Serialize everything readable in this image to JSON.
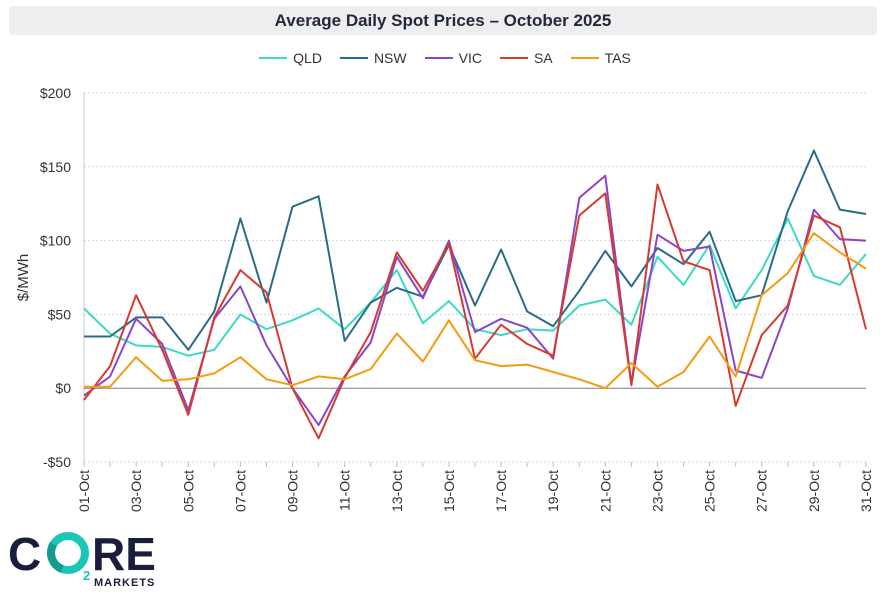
{
  "header": {
    "title": "Average Daily Spot Prices – October 2025"
  },
  "logo": {
    "text": "CO2RE",
    "subtitle": "MARKETS"
  },
  "chart_data": {
    "type": "line",
    "title": "Average Daily Spot Prices – October 2025",
    "ylabel": "$/MWh",
    "xlabel": "",
    "ylim": [
      -50,
      200
    ],
    "ytick_values": [
      -50,
      0,
      50,
      100,
      150,
      200
    ],
    "ytick_labels": [
      "-$50",
      "$0",
      "$50",
      "$100",
      "$150",
      "$200"
    ],
    "categories": [
      "01-Oct",
      "02-Oct",
      "03-Oct",
      "04-Oct",
      "05-Oct",
      "06-Oct",
      "07-Oct",
      "08-Oct",
      "09-Oct",
      "10-Oct",
      "11-Oct",
      "12-Oct",
      "13-Oct",
      "14-Oct",
      "15-Oct",
      "16-Oct",
      "17-Oct",
      "18-Oct",
      "19-Oct",
      "20-Oct",
      "21-Oct",
      "22-Oct",
      "23-Oct",
      "24-Oct",
      "25-Oct",
      "26-Oct",
      "27-Oct",
      "28-Oct",
      "29-Oct",
      "30-Oct",
      "31-Oct"
    ],
    "xtick_labels": [
      "01-Oct",
      "03-Oct",
      "05-Oct",
      "07-Oct",
      "09-Oct",
      "11-Oct",
      "13-Oct",
      "15-Oct",
      "17-Oct",
      "19-Oct",
      "21-Oct",
      "23-Oct",
      "25-Oct",
      "27-Oct",
      "29-Oct",
      "31-Oct"
    ],
    "legend_position": "top-center",
    "series": [
      {
        "name": "QLD",
        "color": "#3dd9c5",
        "values": [
          54,
          37,
          29,
          28,
          22,
          26,
          50,
          40,
          46,
          54,
          40,
          58,
          80,
          44,
          59,
          40,
          36,
          40,
          39,
          56,
          60,
          43,
          89,
          70,
          97,
          54,
          80,
          115,
          76,
          70,
          91
        ]
      },
      {
        "name": "NSW",
        "color": "#2a6b8a",
        "values": [
          35,
          35,
          48,
          48,
          26,
          52,
          115,
          58,
          123,
          130,
          32,
          58,
          68,
          62,
          97,
          56,
          94,
          52,
          42,
          66,
          93,
          69,
          95,
          84,
          106,
          59,
          63,
          120,
          161,
          121,
          118
        ]
      },
      {
        "name": "VIC",
        "color": "#8a45c9",
        "values": [
          -5,
          8,
          47,
          30,
          -15,
          47,
          69,
          29,
          0,
          -25,
          8,
          31,
          89,
          61,
          100,
          38,
          47,
          41,
          20,
          129,
          144,
          3,
          104,
          93,
          96,
          12,
          7,
          54,
          121,
          101,
          100
        ]
      },
      {
        "name": "SA",
        "color": "#d63a2f",
        "values": [
          -8,
          15,
          63,
          26,
          -18,
          48,
          80,
          65,
          0,
          -34,
          7,
          38,
          92,
          66,
          98,
          20,
          43,
          30,
          22,
          117,
          132,
          2,
          138,
          86,
          80,
          -12,
          36,
          56,
          117,
          109,
          40
        ]
      },
      {
        "name": "TAS",
        "color": "#f59b12",
        "values": [
          1,
          1,
          21,
          5,
          6,
          10,
          21,
          6,
          2,
          8,
          6,
          13,
          37,
          18,
          46,
          19,
          15,
          16,
          11,
          6,
          0,
          17,
          1,
          11,
          35,
          8,
          63,
          78,
          105,
          92,
          81
        ]
      }
    ]
  }
}
